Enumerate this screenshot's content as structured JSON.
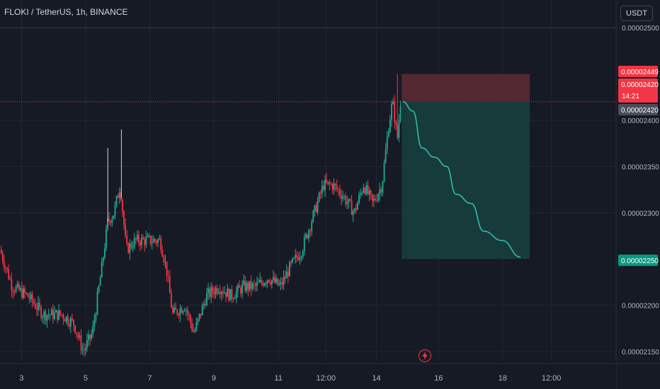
{
  "header": {
    "symbol_title": "FLOKI / TetherUS, 1h, BINANCE"
  },
  "toolbar": {
    "currency_label": "USDT"
  },
  "colors": {
    "background": "#161a25",
    "grid": "#232733",
    "up": "#22ab94",
    "down": "#f23645",
    "stop_zone": "#5b2a33",
    "target_zone": "#173f3d",
    "projection": "#2ec4b6"
  },
  "chart_data": {
    "type": "candlestick",
    "symbol": "FLOKI / TetherUS",
    "interval": "1h",
    "exchange": "BINANCE",
    "y_axis": {
      "ylim": [
        2.14e-05,
        2.53e-05
      ],
      "ticks": [
        {
          "value": 2.5e-05,
          "label": "0.00002500"
        },
        {
          "value": 2.4e-05,
          "label": "0.00002400"
        },
        {
          "value": 2.35e-05,
          "label": "0.00002350"
        },
        {
          "value": 2.3e-05,
          "label": "0.00002300"
        },
        {
          "value": 2.2e-05,
          "label": "0.00002200"
        },
        {
          "value": 2.15e-05,
          "label": "0.00002150"
        }
      ]
    },
    "x_axis": {
      "ticks": [
        {
          "t": 0.035,
          "label": "3"
        },
        {
          "t": 0.139,
          "label": "5"
        },
        {
          "t": 0.243,
          "label": "7"
        },
        {
          "t": 0.347,
          "label": "9"
        },
        {
          "t": 0.452,
          "label": "11"
        },
        {
          "t": 0.529,
          "label": "12:00"
        },
        {
          "t": 0.611,
          "label": "14"
        },
        {
          "t": 0.712,
          "label": "16"
        },
        {
          "t": 0.816,
          "label": "18"
        },
        {
          "t": 0.895,
          "label": "12:00"
        }
      ]
    },
    "price_path": [
      [
        0.0,
        2.26e-05
      ],
      [
        0.02,
        2.22e-05
      ],
      [
        0.045,
        2.21e-05
      ],
      [
        0.07,
        2.19e-05
      ],
      [
        0.1,
        2.19e-05
      ],
      [
        0.12,
        2.18e-05
      ],
      [
        0.135,
        2.15e-05
      ],
      [
        0.15,
        2.17e-05
      ],
      [
        0.165,
        2.24e-05
      ],
      [
        0.175,
        2.29e-05
      ],
      [
        0.185,
        2.3e-05
      ],
      [
        0.195,
        2.33e-05
      ],
      [
        0.205,
        2.26e-05
      ],
      [
        0.22,
        2.27e-05
      ],
      [
        0.24,
        2.27e-05
      ],
      [
        0.26,
        2.27e-05
      ],
      [
        0.27,
        2.24e-05
      ],
      [
        0.28,
        2.19e-05
      ],
      [
        0.3,
        2.2e-05
      ],
      [
        0.315,
        2.17e-05
      ],
      [
        0.335,
        2.21e-05
      ],
      [
        0.355,
        2.22e-05
      ],
      [
        0.375,
        2.21e-05
      ],
      [
        0.395,
        2.22e-05
      ],
      [
        0.415,
        2.22e-05
      ],
      [
        0.435,
        2.23e-05
      ],
      [
        0.455,
        2.22e-05
      ],
      [
        0.47,
        2.24e-05
      ],
      [
        0.49,
        2.26e-05
      ],
      [
        0.51,
        2.3e-05
      ],
      [
        0.525,
        2.33e-05
      ],
      [
        0.54,
        2.33e-05
      ],
      [
        0.555,
        2.32e-05
      ],
      [
        0.575,
        2.3e-05
      ],
      [
        0.59,
        2.33e-05
      ],
      [
        0.605,
        2.31e-05
      ],
      [
        0.62,
        2.33e-05
      ],
      [
        0.63,
        2.39e-05
      ],
      [
        0.637,
        2.42e-05
      ],
      [
        0.645,
        2.38e-05
      ],
      [
        0.65,
        2.42e-05
      ]
    ],
    "spikes": [
      {
        "t": 0.175,
        "value": 2.37e-05
      },
      {
        "t": 0.197,
        "value": 2.39e-05
      },
      {
        "t": 0.645,
        "value": 2.45e-05
      }
    ],
    "position": {
      "entry": 2.42e-05,
      "stop": 2.45e-05,
      "target": 2.25e-05,
      "start_t": 0.652,
      "end_t": 0.86
    },
    "projection_path": [
      [
        0.654,
        2.42e-05
      ],
      [
        0.67,
        2.41e-05
      ],
      [
        0.685,
        2.37e-05
      ],
      [
        0.705,
        2.36e-05
      ],
      [
        0.725,
        2.35e-05
      ],
      [
        0.74,
        2.32e-05
      ],
      [
        0.765,
        2.31e-05
      ],
      [
        0.785,
        2.28e-05
      ],
      [
        0.815,
        2.27e-05
      ],
      [
        0.845,
        2.252e-05
      ]
    ],
    "high_line": 2.5e-05,
    "price_labels": [
      {
        "value": 2.45e-05,
        "label": "0.00002449",
        "color": "#f23645"
      },
      {
        "value": 2.43e-05,
        "label": "0.00002420",
        "color": "#f23645"
      },
      {
        "value": 2.42e-05,
        "label": "0.00002420",
        "color": "#4a4e5a"
      },
      {
        "value": 2.25e-05,
        "label": "0.00002250",
        "color": "#089981"
      }
    ],
    "countdown_label": "14:21"
  }
}
